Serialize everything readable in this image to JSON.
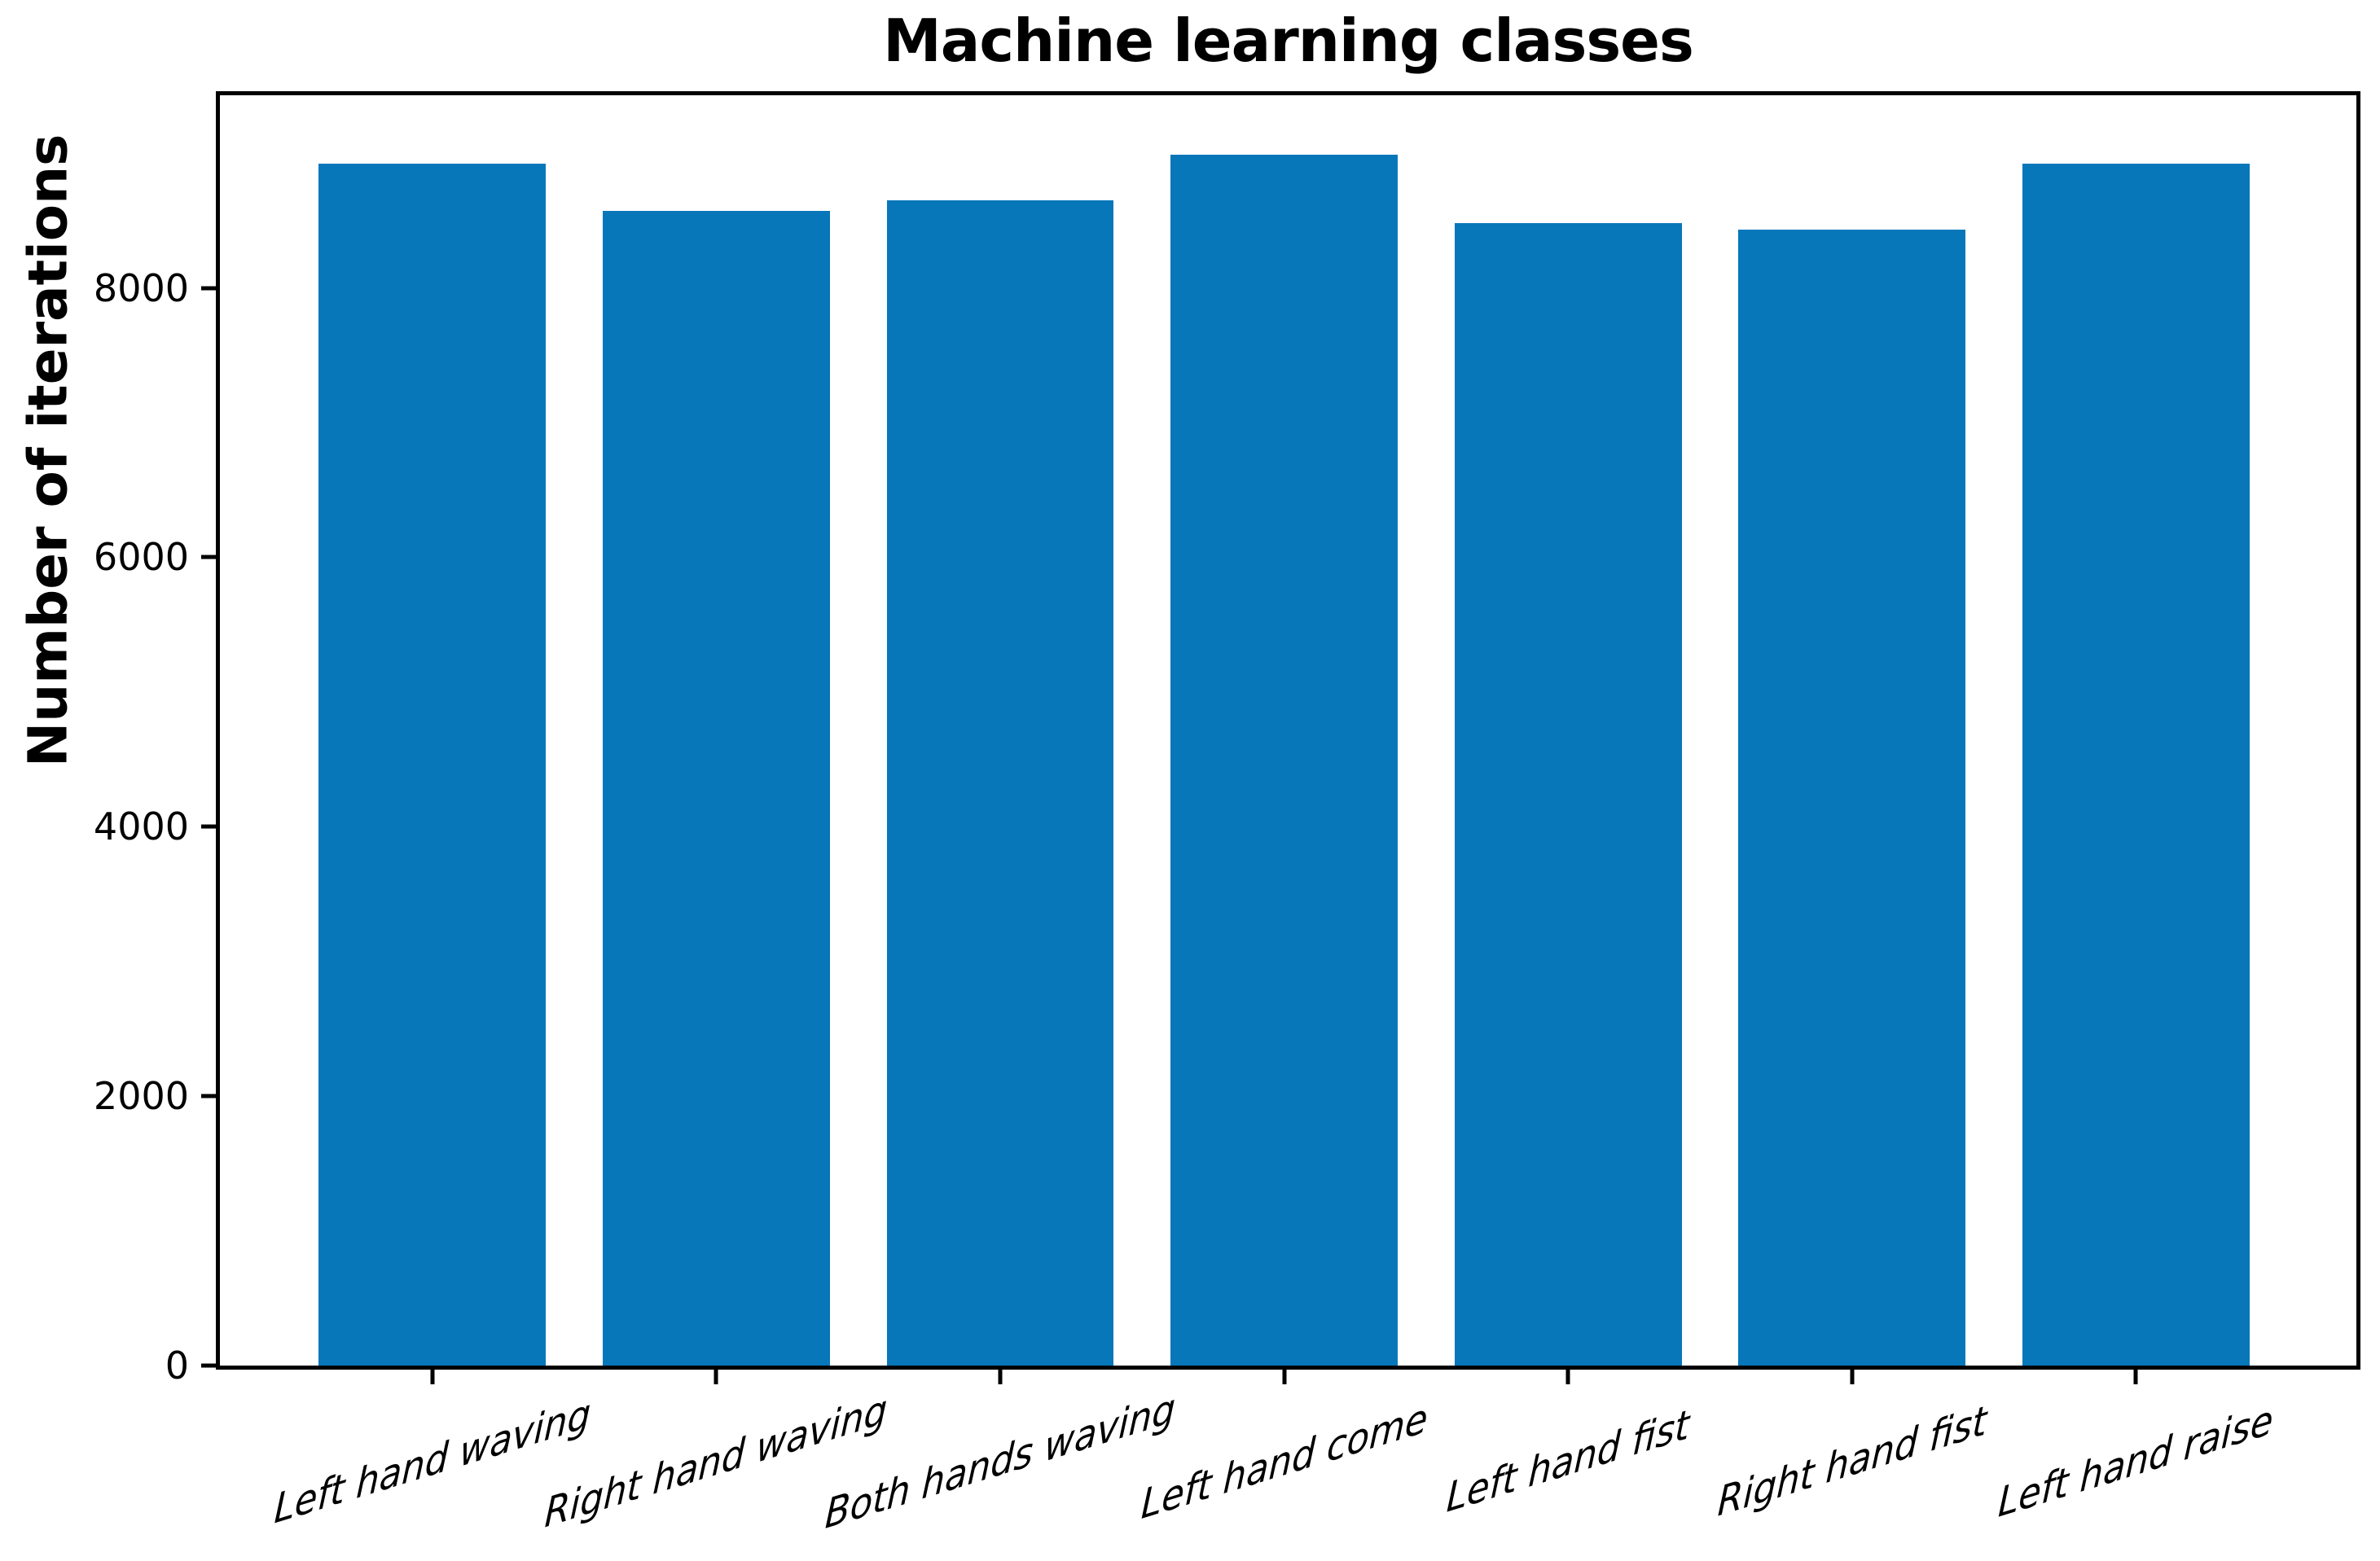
{
  "chart_data": {
    "type": "bar",
    "title": "Machine learning classes",
    "xlabel": "",
    "ylabel": "Number of iterations",
    "categories": [
      "Left hand waving",
      "Right hand waving",
      "Both hands waving",
      "Left hand come",
      "Left hand fist",
      "Right hand fist",
      "Left hand raise"
    ],
    "values": [
      8920,
      8570,
      8650,
      8990,
      8480,
      8430,
      8920
    ],
    "yticks": [
      0,
      2000,
      4000,
      6000,
      8000
    ],
    "ylim": [
      0,
      9430
    ],
    "grid": false,
    "legend": false,
    "x_tick_label_rotation_deg": 17
  },
  "colors": {
    "bar": "#0877b9",
    "text": "#000000",
    "spine": "#000000",
    "background": "#ffffff"
  }
}
